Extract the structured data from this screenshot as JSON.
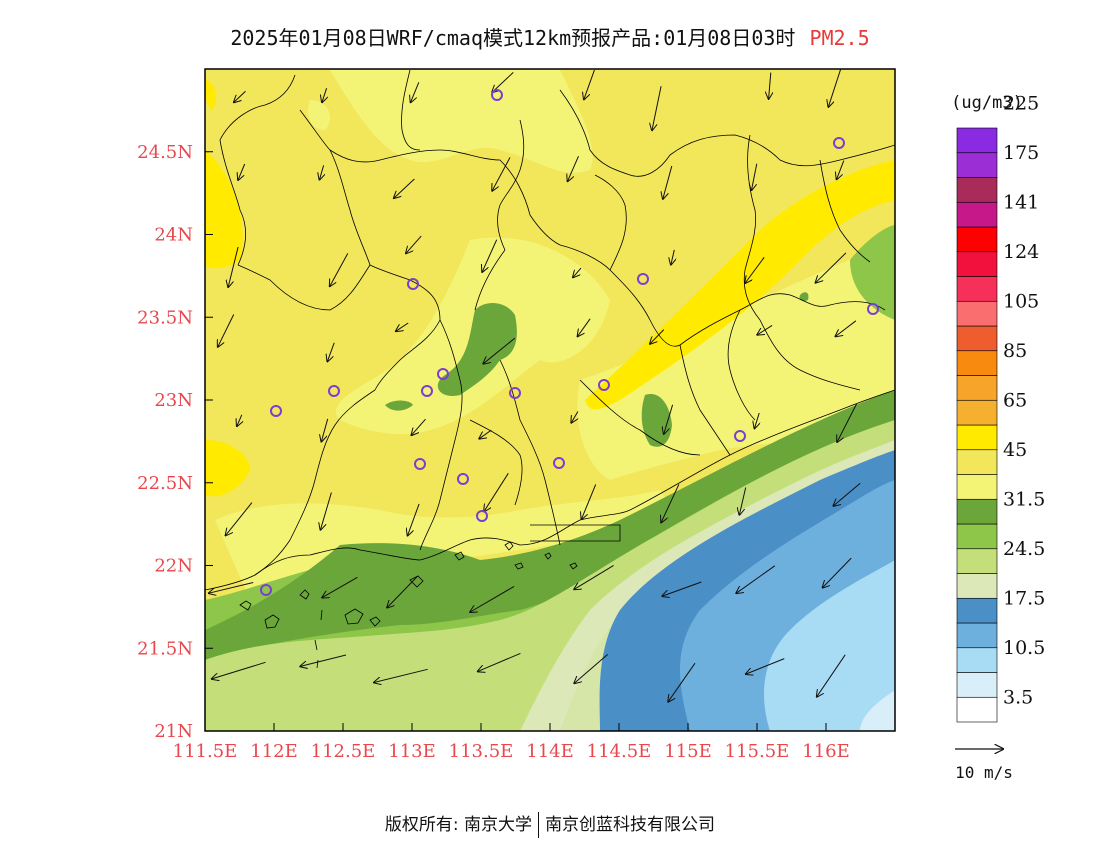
{
  "title": {
    "main": "2025年01月08日WRF/cmaq模式12km预报产品:01月08日03时",
    "pollutant": "PM2.5"
  },
  "axes": {
    "x_ticks": [
      "111.5E",
      "112E",
      "112.5E",
      "113E",
      "113.5E",
      "114E",
      "114.5E",
      "115E",
      "115.5E",
      "116E"
    ],
    "y_ticks": [
      "21N",
      "21.5N",
      "22N",
      "22.5N",
      "23N",
      "23.5N",
      "24N",
      "24.5N"
    ],
    "lon_range": [
      111.5,
      116.5
    ],
    "lat_range": [
      21.0,
      25.0
    ],
    "tick_color": "#e8474c"
  },
  "legend": {
    "unit": "(ug/m3)",
    "labels": [
      "3.5",
      "10.5",
      "17.5",
      "24.5",
      "31.5",
      "45",
      "65",
      "85",
      "105",
      "124",
      "141",
      "175",
      "225"
    ],
    "colors": [
      "#ffffff",
      "#d8eef9",
      "#a8dcf4",
      "#6eb0dd",
      "#4a8fc6",
      "#dde8b8",
      "#c4df7a",
      "#8ec64a",
      "#6ba63b",
      "#f3f476",
      "#f2e65b",
      "#ffea00",
      "#f6b030",
      "#f6a42a",
      "#f88a10",
      "#ef5c2e",
      "#fb6e70",
      "#f7305a",
      "#f2103c",
      "#ff0000",
      "#c7188a",
      "#a92b5a",
      "#9c2ed6",
      "#8a2be2"
    ]
  },
  "wind_scale": {
    "label": "10 m/s"
  },
  "stations": [
    "station"
  ],
  "credit": {
    "left": "版权所有: 南京大学",
    "right": "南京创蓝科技有限公司"
  }
}
